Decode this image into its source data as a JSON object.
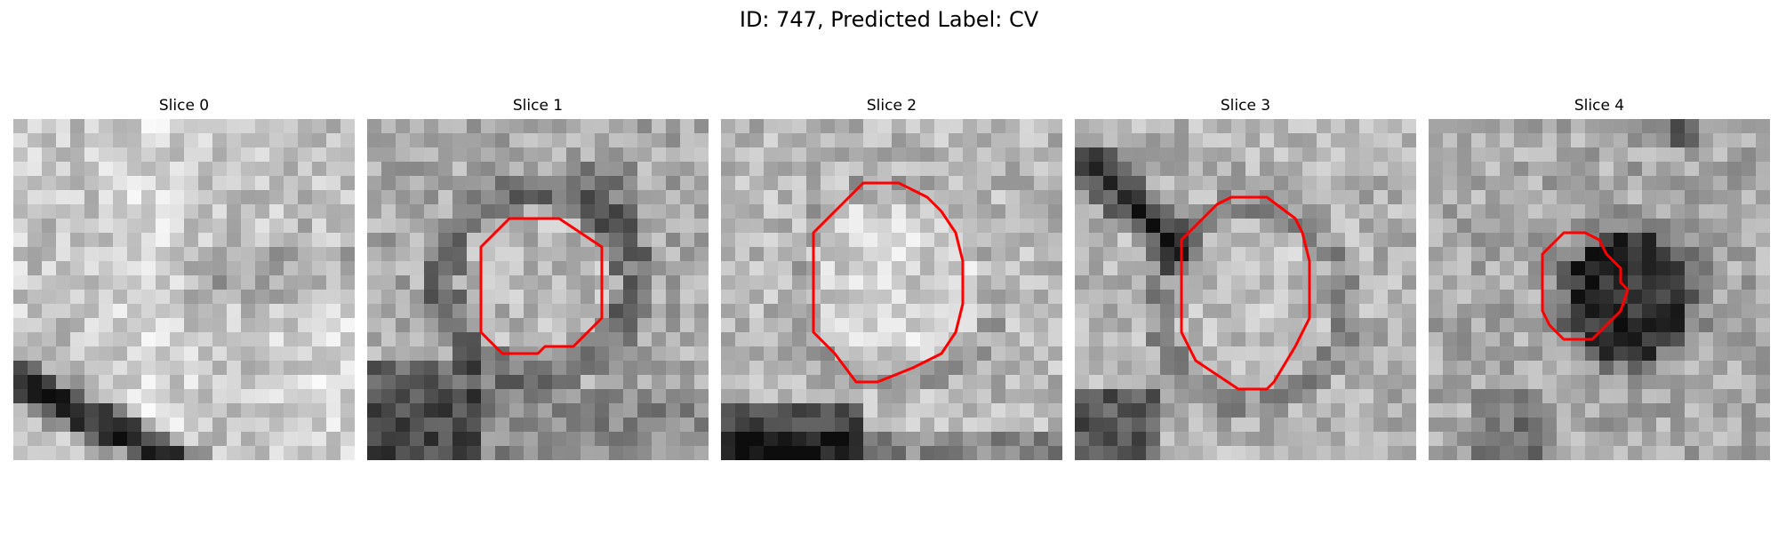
{
  "figure": {
    "title": "ID: 747, Predicted Label: CV"
  },
  "contour_color": "#ff0000",
  "colormap": "gray",
  "slices": [
    {
      "label": "Slice 0"
    },
    {
      "label": "Slice 1"
    },
    {
      "label": "Slice 2"
    },
    {
      "label": "Slice 3"
    },
    {
      "label": "Slice 4"
    }
  ]
}
